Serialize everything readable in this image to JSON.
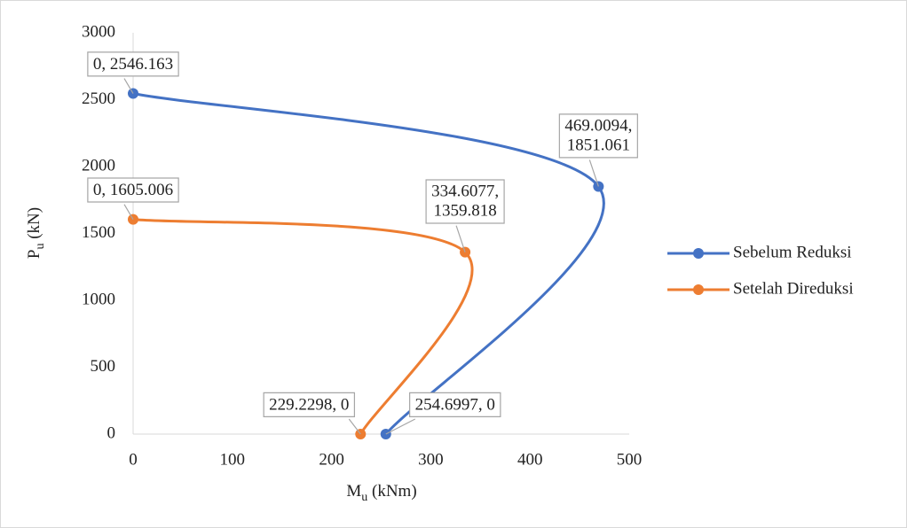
{
  "chart_data": {
    "type": "scatter",
    "xlabel": [
      "M",
      "u",
      " (kNm)"
    ],
    "ylabel": [
      "P",
      "u",
      " (kN)"
    ],
    "xlim": [
      0,
      500
    ],
    "xticks": [
      0,
      100,
      200,
      300,
      400,
      500
    ],
    "ylim": [
      0,
      3000
    ],
    "yticks": [
      0,
      500,
      1000,
      1500,
      2000,
      2500,
      3000
    ],
    "smooth": true,
    "legend": "right",
    "series": [
      {
        "name": "Sebelum Reduksi",
        "color": "#4472c4",
        "x": [
          0,
          469.0094,
          254.6997
        ],
        "values": [
          2546.163,
          1851.061,
          0
        ],
        "value_labels": [
          "0, 2546.163",
          "469.0094,\n1851.061",
          "254.6997, 0"
        ]
      },
      {
        "name": "Setelah Direduksi",
        "color": "#ed7d31",
        "x": [
          0,
          334.6077,
          229.2298
        ],
        "values": [
          1605.006,
          1359.818,
          0
        ],
        "value_labels": [
          "0, 1605.006",
          "334.6077,\n1359.818",
          "229.2298, 0"
        ]
      }
    ]
  }
}
